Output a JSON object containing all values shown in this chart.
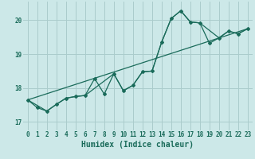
{
  "xlabel": "Humidex (Indice chaleur)",
  "background_color": "#cce8e8",
  "grid_color": "#aacccc",
  "line_color": "#1a6b5a",
  "xlim": [
    -0.5,
    23.5
  ],
  "ylim": [
    16.75,
    20.55
  ],
  "yticks": [
    17,
    18,
    19,
    20
  ],
  "xticks": [
    0,
    1,
    2,
    3,
    4,
    5,
    6,
    7,
    8,
    9,
    10,
    11,
    12,
    13,
    14,
    15,
    16,
    17,
    18,
    19,
    20,
    21,
    22,
    23
  ],
  "series1_x": [
    0,
    1,
    2,
    3,
    4,
    5,
    6,
    7,
    8,
    9,
    10,
    11,
    12,
    13,
    14,
    15,
    16,
    17,
    18,
    19,
    20,
    21,
    22,
    23
  ],
  "series1_y": [
    17.65,
    17.42,
    17.32,
    17.52,
    17.7,
    17.75,
    17.78,
    18.28,
    17.82,
    18.42,
    17.92,
    18.08,
    18.48,
    18.5,
    19.35,
    20.05,
    20.28,
    19.95,
    19.92,
    19.32,
    19.48,
    19.68,
    19.6,
    19.75
  ],
  "series2_x": [
    0,
    2,
    3,
    4,
    5,
    6,
    9,
    10,
    11,
    12,
    13,
    14,
    15,
    16,
    17,
    18,
    20,
    21,
    22,
    23
  ],
  "series2_y": [
    17.65,
    17.32,
    17.52,
    17.7,
    17.75,
    17.78,
    18.42,
    17.92,
    18.08,
    18.48,
    18.5,
    19.35,
    20.05,
    20.28,
    19.95,
    19.92,
    19.48,
    19.68,
    19.6,
    19.75
  ],
  "trend_x": [
    0,
    23
  ],
  "trend_y": [
    17.65,
    19.75
  ]
}
